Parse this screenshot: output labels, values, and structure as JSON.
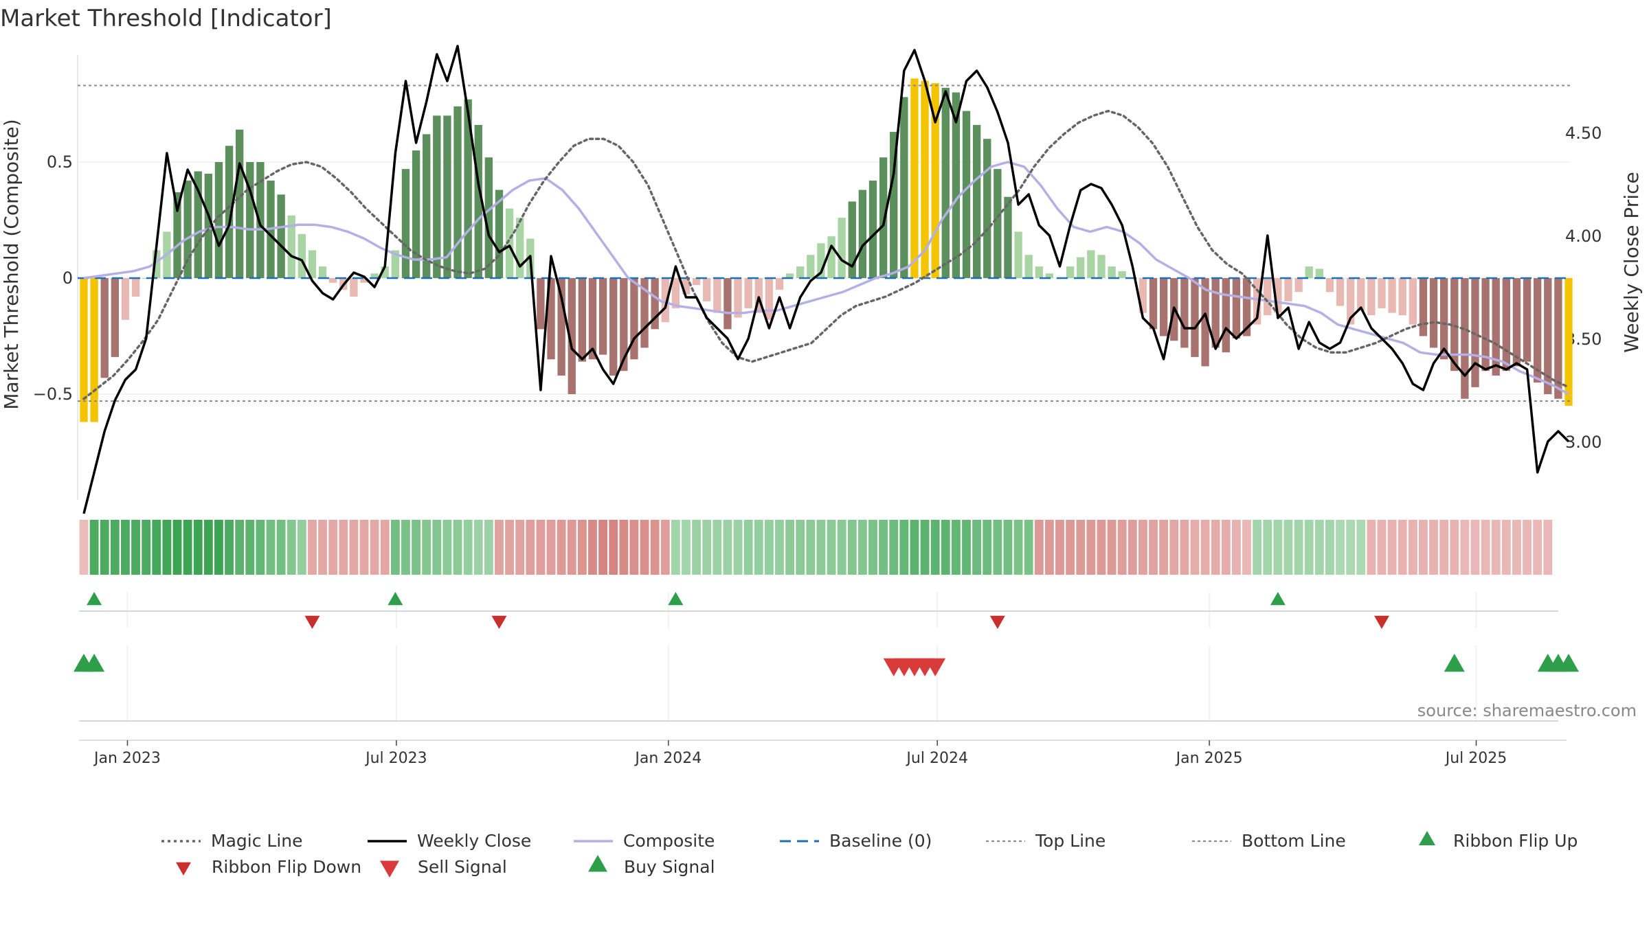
{
  "title": "Market Threshold [Indicator]",
  "source": "source: sharemaestro.com",
  "colors": {
    "magic_line": "#666666",
    "weekly_close": "#000000",
    "composite": "#b4b0e6",
    "baseline": "#1f6fb4",
    "top_line": "#888888",
    "bottom_line": "#888888",
    "extreme_bar": "#f5c400",
    "buy": "#2e9e4a",
    "sell": "#d93a3a",
    "ribbon_flip_down": "#c9302c"
  },
  "chart_data": {
    "type": "bar",
    "title": "Market Threshold [Indicator]",
    "xlabel": "",
    "ylabel_left": "Market Threshold (Composite)",
    "ylabel_right": "Weekly Close Price",
    "left_ylim": [
      -0.95,
      0.95
    ],
    "right_ylim": [
      2.62,
      4.96
    ],
    "left_ticks": [
      {
        "v": 0.5,
        "label": "0.5"
      },
      {
        "v": 0,
        "label": "0"
      },
      {
        "v": -0.5,
        "label": "−0.5"
      }
    ],
    "right_ticks": [
      {
        "v": 4.5,
        "label": "4.50"
      },
      {
        "v": 4.0,
        "label": "4.00"
      },
      {
        "v": 3.5,
        "label": "3.50"
      },
      {
        "v": 3.0,
        "label": "3.00"
      }
    ],
    "x_ticks": [
      {
        "t": 4.2,
        "label": "Jan 2023"
      },
      {
        "t": 30.1,
        "label": "Jul 2023"
      },
      {
        "t": 56.3,
        "label": "Jan 2024"
      },
      {
        "t": 82.2,
        "label": "Jul 2024"
      },
      {
        "t": 108.4,
        "label": "Jan 2025"
      },
      {
        "t": 134.1,
        "label": "Jul 2025"
      }
    ],
    "top_line": 0.83,
    "bottom_line": -0.53,
    "baseline": 0,
    "composite_bars": [
      -0.62,
      -0.62,
      -0.43,
      -0.34,
      -0.18,
      -0.08,
      0.0,
      0.12,
      0.2,
      0.37,
      0.42,
      0.46,
      0.45,
      0.5,
      0.57,
      0.64,
      0.5,
      0.5,
      0.42,
      0.36,
      0.27,
      0.19,
      0.12,
      0.05,
      -0.02,
      -0.05,
      -0.08,
      -0.02,
      0.02,
      0.05,
      0.12,
      0.47,
      0.55,
      0.62,
      0.7,
      0.7,
      0.74,
      0.77,
      0.66,
      0.52,
      0.38,
      0.3,
      0.26,
      0.17,
      -0.22,
      -0.35,
      -0.42,
      -0.5,
      -0.36,
      -0.35,
      -0.33,
      -0.42,
      -0.4,
      -0.35,
      -0.3,
      -0.22,
      -0.19,
      -0.13,
      -0.07,
      -0.03,
      -0.1,
      -0.15,
      -0.22,
      -0.17,
      -0.13,
      -0.15,
      -0.18,
      -0.05,
      0.02,
      0.05,
      0.1,
      0.15,
      0.18,
      0.26,
      0.33,
      0.38,
      0.42,
      0.52,
      0.63,
      0.78,
      0.86,
      0.85,
      0.84,
      0.82,
      0.8,
      0.72,
      0.66,
      0.6,
      0.47,
      0.35,
      0.2,
      0.1,
      0.05,
      0.02,
      0.0,
      0.05,
      0.09,
      0.12,
      0.1,
      0.05,
      0.03,
      0.0,
      -0.15,
      -0.22,
      -0.25,
      -0.27,
      -0.3,
      -0.34,
      -0.38,
      -0.3,
      -0.32,
      -0.26,
      -0.25,
      -0.2,
      -0.16,
      -0.15,
      -0.1,
      -0.06,
      0.05,
      0.04,
      -0.06,
      -0.12,
      -0.2,
      -0.14,
      -0.16,
      -0.13,
      -0.15,
      -0.16,
      -0.2,
      -0.25,
      -0.3,
      -0.35,
      -0.4,
      -0.52,
      -0.47,
      -0.4,
      -0.42,
      -0.4,
      -0.38,
      -0.36,
      -0.45,
      -0.5,
      -0.52,
      -0.55
    ],
    "weekly_close": [
      2.65,
      2.85,
      3.05,
      3.2,
      3.3,
      3.35,
      3.5,
      3.95,
      4.4,
      4.12,
      4.32,
      4.22,
      4.1,
      3.95,
      4.05,
      4.35,
      4.22,
      4.05,
      4.0,
      3.95,
      3.9,
      3.88,
      3.78,
      3.72,
      3.69,
      3.76,
      3.82,
      3.8,
      3.75,
      3.85,
      4.4,
      4.75,
      4.45,
      4.65,
      4.88,
      4.75,
      4.92,
      4.6,
      4.25,
      4.0,
      3.92,
      3.95,
      3.85,
      3.9,
      3.25,
      3.9,
      3.7,
      3.45,
      3.4,
      3.45,
      3.35,
      3.28,
      3.4,
      3.5,
      3.55,
      3.6,
      3.65,
      3.85,
      3.7,
      3.7,
      3.6,
      3.55,
      3.5,
      3.4,
      3.5,
      3.7,
      3.55,
      3.7,
      3.55,
      3.7,
      3.78,
      3.82,
      3.95,
      3.88,
      3.85,
      3.95,
      4.0,
      4.05,
      4.3,
      4.8,
      4.9,
      4.75,
      4.55,
      4.7,
      4.55,
      4.75,
      4.8,
      4.72,
      4.6,
      4.45,
      4.15,
      4.2,
      4.05,
      4.0,
      3.85,
      4.05,
      4.22,
      4.25,
      4.23,
      4.15,
      4.05,
      3.85,
      3.6,
      3.55,
      3.4,
      3.65,
      3.55,
      3.55,
      3.62,
      3.45,
      3.55,
      3.5,
      3.55,
      3.6,
      4.0,
      3.6,
      3.65,
      3.45,
      3.58,
      3.48,
      3.45,
      3.48,
      3.6,
      3.65,
      3.55,
      3.5,
      3.45,
      3.38,
      3.28,
      3.25,
      3.38,
      3.45,
      3.38,
      3.32,
      3.38,
      3.35,
      3.37,
      3.35,
      3.38,
      3.35,
      2.85,
      3.0,
      3.05,
      3.0
    ],
    "magic_line": [
      -0.52,
      -0.47,
      -0.42,
      -0.35,
      -0.27,
      -0.18,
      -0.05,
      0.08,
      0.18,
      0.26,
      0.32,
      0.38,
      0.42,
      0.46,
      0.49,
      0.5,
      0.48,
      0.43,
      0.37,
      0.3,
      0.24,
      0.18,
      0.12,
      0.08,
      0.05,
      0.03,
      0.02,
      0.04,
      0.1,
      0.2,
      0.32,
      0.42,
      0.5,
      0.57,
      0.6,
      0.6,
      0.57,
      0.5,
      0.4,
      0.25,
      0.1,
      -0.05,
      -0.18,
      -0.28,
      -0.34,
      -0.36,
      -0.34,
      -0.32,
      -0.3,
      -0.28,
      -0.22,
      -0.16,
      -0.12,
      -0.1,
      -0.08,
      -0.05,
      -0.02,
      0.02,
      0.06,
      0.1,
      0.15,
      0.22,
      0.3,
      0.38,
      0.48,
      0.56,
      0.62,
      0.67,
      0.7,
      0.72,
      0.7,
      0.65,
      0.58,
      0.48,
      0.35,
      0.22,
      0.12,
      0.06,
      0.02,
      -0.05,
      -0.12,
      -0.2,
      -0.26,
      -0.3,
      -0.32,
      -0.32,
      -0.3,
      -0.28,
      -0.25,
      -0.22,
      -0.2,
      -0.19,
      -0.2,
      -0.22,
      -0.25,
      -0.28,
      -0.32,
      -0.36,
      -0.4,
      -0.44,
      -0.47
    ],
    "composite_line": [
      0.0,
      0.01,
      0.02,
      0.03,
      0.05,
      0.1,
      0.16,
      0.2,
      0.22,
      0.22,
      0.21,
      0.21,
      0.22,
      0.23,
      0.23,
      0.22,
      0.2,
      0.17,
      0.13,
      0.1,
      0.08,
      0.08,
      0.09,
      0.18,
      0.26,
      0.32,
      0.38,
      0.42,
      0.43,
      0.38,
      0.3,
      0.2,
      0.1,
      0.0,
      -0.05,
      -0.1,
      -0.12,
      -0.13,
      -0.14,
      -0.15,
      -0.15,
      -0.14,
      -0.14,
      -0.12,
      -0.1,
      -0.08,
      -0.06,
      -0.03,
      0.0,
      0.02,
      0.05,
      0.12,
      0.25,
      0.35,
      0.42,
      0.48,
      0.5,
      0.48,
      0.4,
      0.3,
      0.22,
      0.2,
      0.22,
      0.2,
      0.15,
      0.08,
      0.04,
      0.0,
      -0.05,
      -0.07,
      -0.08,
      -0.09,
      -0.1,
      -0.11,
      -0.12,
      -0.15,
      -0.2,
      -0.22,
      -0.24,
      -0.26,
      -0.28,
      -0.32,
      -0.33,
      -0.33,
      -0.33,
      -0.34,
      -0.36,
      -0.4,
      -0.43,
      -0.46,
      -0.5
    ],
    "series": [
      {
        "name": "Magic Line"
      },
      {
        "name": "Weekly Close"
      },
      {
        "name": "Composite"
      },
      {
        "name": "Baseline (0)"
      },
      {
        "name": "Top Line"
      },
      {
        "name": "Bottom Line"
      }
    ],
    "ribbon_levels": [
      -0.25,
      0.85,
      0.85,
      0.85,
      0.85,
      0.85,
      0.85,
      0.9,
      0.92,
      0.95,
      0.95,
      0.95,
      0.95,
      0.95,
      0.85,
      0.75,
      0.75,
      0.7,
      0.6,
      0.6,
      0.5,
      0.4,
      -0.45,
      -0.45,
      -0.45,
      -0.45,
      -0.45,
      -0.45,
      -0.45,
      -0.45,
      0.6,
      0.55,
      0.55,
      0.5,
      0.5,
      0.45,
      0.45,
      0.4,
      0.35,
      0.35,
      -0.5,
      -0.5,
      -0.5,
      -0.55,
      -0.55,
      -0.55,
      -0.6,
      -0.6,
      -0.65,
      -0.75,
      -0.8,
      -0.8,
      -0.75,
      -0.7,
      -0.7,
      -0.65,
      -0.55,
      0.3,
      0.3,
      0.35,
      0.35,
      0.35,
      0.35,
      0.35,
      0.4,
      0.4,
      0.4,
      0.4,
      0.45,
      0.45,
      0.45,
      0.45,
      0.45,
      0.45,
      0.5,
      0.5,
      0.55,
      0.6,
      0.65,
      0.7,
      0.75,
      0.75,
      0.75,
      0.75,
      0.7,
      0.7,
      0.65,
      0.65,
      0.6,
      0.6,
      0.55,
      0.55,
      -0.6,
      -0.6,
      -0.6,
      -0.6,
      -0.6,
      -0.6,
      -0.6,
      -0.6,
      -0.55,
      -0.55,
      -0.5,
      -0.5,
      -0.5,
      -0.45,
      -0.45,
      -0.4,
      -0.4,
      -0.4,
      -0.4,
      -0.35,
      -0.3,
      0.3,
      0.3,
      0.3,
      0.3,
      0.3,
      0.3,
      0.3,
      0.3,
      0.25,
      0.25,
      0.25,
      -0.35,
      -0.35,
      -0.35,
      -0.35,
      -0.35,
      -0.35,
      -0.35,
      -0.35,
      -0.35,
      -0.3,
      -0.3,
      -0.3,
      -0.3,
      -0.3,
      -0.3,
      -0.3,
      -0.3,
      -0.3
    ],
    "ribbon_flip_up": [
      1,
      30,
      57,
      115
    ],
    "ribbon_flip_down": [
      22,
      40,
      88,
      125
    ],
    "buy_signals": [
      0,
      1,
      132,
      141,
      142,
      143
    ],
    "sell_signals": [
      78,
      79,
      80,
      81,
      82
    ]
  },
  "legend": [
    {
      "key": "magic",
      "label": "Magic Line"
    },
    {
      "key": "close",
      "label": "Weekly Close"
    },
    {
      "key": "composite",
      "label": "Composite"
    },
    {
      "key": "baseline",
      "label": "Baseline (0)"
    },
    {
      "key": "top",
      "label": "Top Line"
    },
    {
      "key": "bottom",
      "label": "Bottom Line"
    },
    {
      "key": "flipup",
      "label": "Ribbon Flip Up"
    },
    {
      "key": "flipdown",
      "label": "Ribbon Flip Down"
    },
    {
      "key": "sell",
      "label": "Sell Signal"
    },
    {
      "key": "buy",
      "label": "Buy Signal"
    }
  ]
}
